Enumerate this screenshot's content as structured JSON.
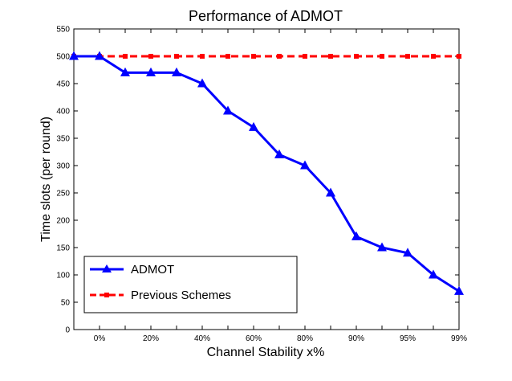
{
  "chart_data": {
    "type": "line",
    "title": "Performance of ADMOT",
    "xlabel": "Channel Stability x%",
    "ylabel": "Time slots (per round)",
    "ylim": [
      0,
      550
    ],
    "yticks": [
      0,
      50,
      100,
      150,
      200,
      250,
      300,
      350,
      400,
      450,
      500,
      550
    ],
    "x_tick_labels": [
      "",
      "0%",
      "",
      "20%",
      "",
      "40%",
      "",
      "60%",
      "",
      "80%",
      "",
      "90%",
      "",
      "95%",
      "",
      "99%"
    ],
    "legend_position": "bottom-left",
    "series": [
      {
        "name": "ADMOT",
        "color": "#0000ff",
        "marker": "triangle",
        "linestyle": "solid",
        "values": [
          500,
          500,
          470,
          470,
          470,
          450,
          400,
          370,
          320,
          300,
          250,
          170,
          150,
          140,
          100,
          70
        ]
      },
      {
        "name": "Previous Schemes",
        "color": "#ff0000",
        "marker": "square",
        "linestyle": "dashed",
        "values": [
          500,
          500,
          500,
          500,
          500,
          500,
          500,
          500,
          500,
          500,
          500,
          500,
          500,
          500,
          500,
          500
        ]
      }
    ]
  }
}
